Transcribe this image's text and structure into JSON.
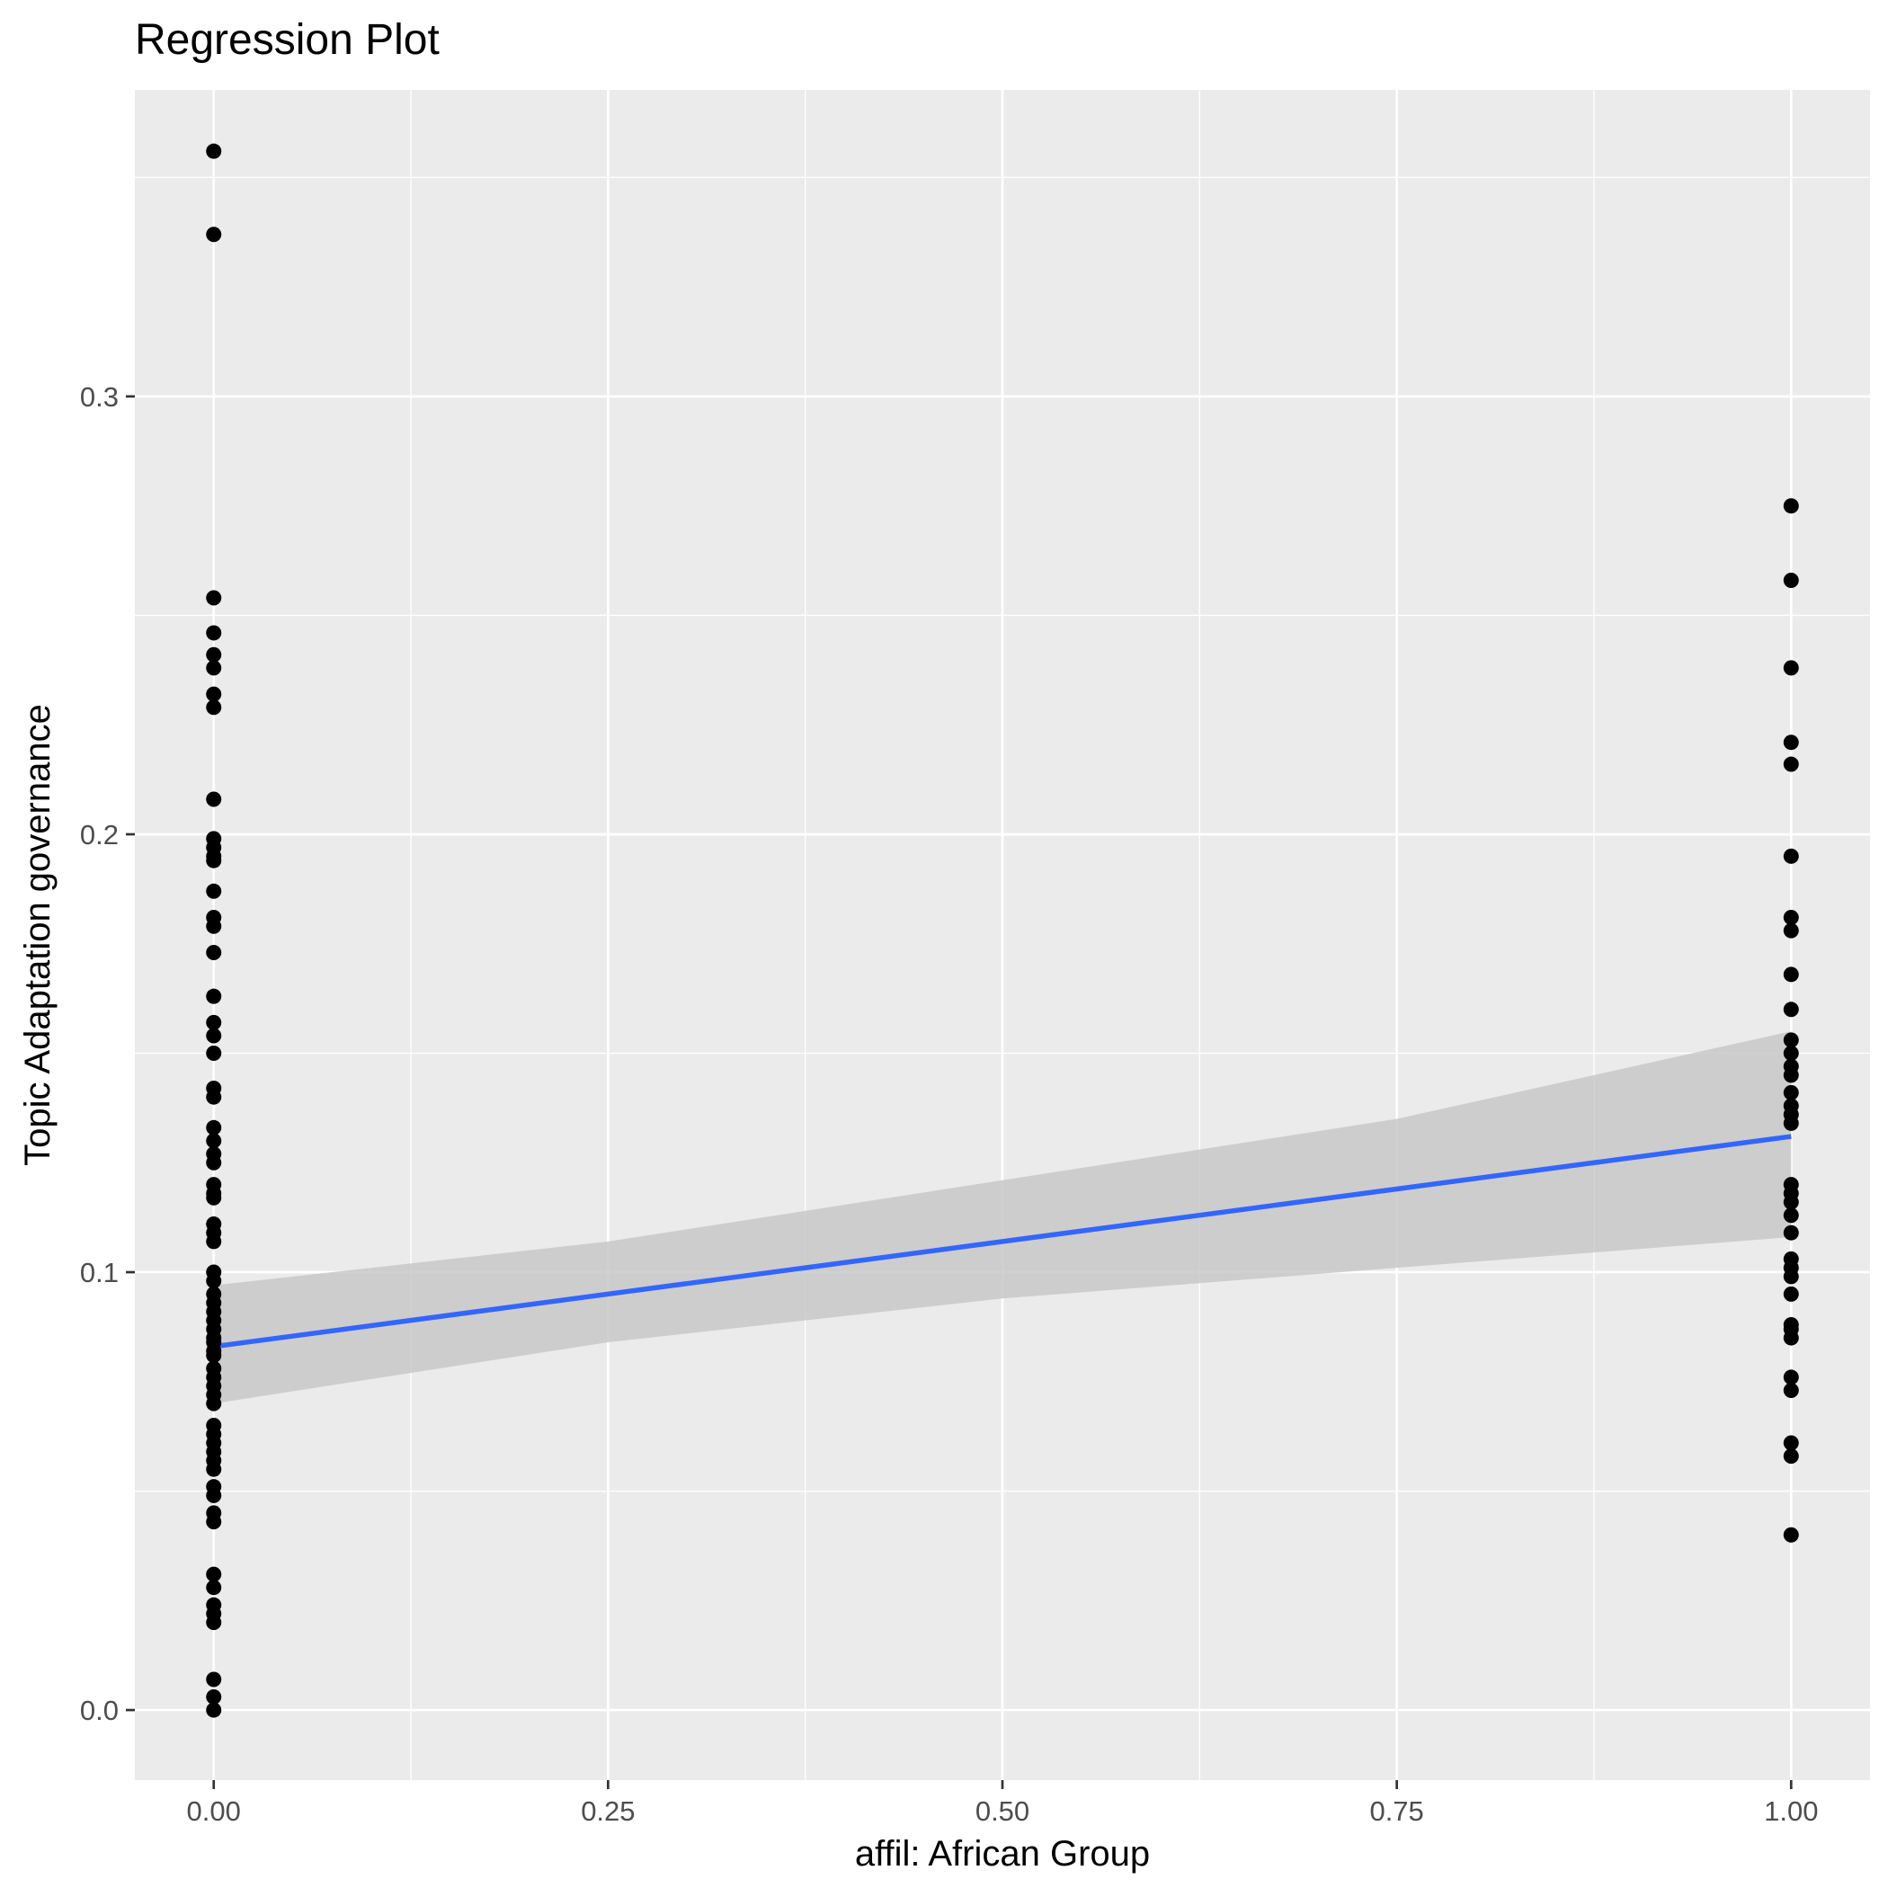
{
  "chart_data": {
    "type": "scatter",
    "title": "Regression Plot",
    "xlabel": "affil: African Group",
    "ylabel": "Topic Adaptation governance",
    "xlim": [
      -0.05,
      1.05
    ],
    "ylim": [
      -0.016,
      0.37
    ],
    "x_ticks": [
      0,
      0.25,
      0.5,
      0.75,
      1
    ],
    "x_tick_labels": [
      "0.00",
      "0.25",
      "0.50",
      "0.75",
      "1.00"
    ],
    "x_minor_ticks": [
      0.125,
      0.375,
      0.625,
      0.875
    ],
    "y_ticks": [
      0,
      0.1,
      0.2,
      0.3
    ],
    "y_tick_labels": [
      "0.0",
      "0.1",
      "0.2",
      "0.3"
    ],
    "y_minor_ticks": [
      0.05,
      0.15,
      0.25,
      0.35
    ],
    "grid": true,
    "legend": "none",
    "colors": {
      "panel_background": "#ebebeb",
      "grid": "#ffffff",
      "points": "#000000",
      "fit_line": "#3366ff",
      "confidence_band": "#c8c8c8",
      "tick_label": "#4d4d4d",
      "tick_mark": "#333333"
    },
    "fit_line": {
      "x": [
        0,
        1
      ],
      "y": [
        0.083,
        0.131
      ]
    },
    "confidence_band": {
      "x": [
        0,
        0.25,
        0.5,
        0.75,
        1
      ],
      "lower": [
        0.07,
        0.084,
        0.094,
        0.101,
        0.108
      ],
      "upper": [
        0.097,
        0.107,
        0.121,
        0.135,
        0.155
      ]
    },
    "series": [
      {
        "x": 0,
        "y": [
          0.356,
          0.337,
          0.254,
          0.246,
          0.241,
          0.238,
          0.232,
          0.229,
          0.208,
          0.199,
          0.197,
          0.195,
          0.194,
          0.187,
          0.181,
          0.179,
          0.173,
          0.163,
          0.157,
          0.154,
          0.15,
          0.142,
          0.14,
          0.133,
          0.13,
          0.127,
          0.125,
          0.12,
          0.118,
          0.117,
          0.111,
          0.109,
          0.107,
          0.1,
          0.098,
          0.095,
          0.093,
          0.091,
          0.089,
          0.087,
          0.085,
          0.084,
          0.082,
          0.081,
          0.078,
          0.076,
          0.074,
          0.072,
          0.07,
          0.065,
          0.063,
          0.061,
          0.059,
          0.057,
          0.055,
          0.051,
          0.049,
          0.045,
          0.043,
          0.031,
          0.028,
          0.024,
          0.022,
          0.02,
          0.007,
          0.003,
          0.0
        ]
      },
      {
        "x": 1,
        "y": [
          0.275,
          0.258,
          0.238,
          0.221,
          0.216,
          0.195,
          0.181,
          0.178,
          0.168,
          0.16,
          0.153,
          0.15,
          0.147,
          0.145,
          0.141,
          0.138,
          0.136,
          0.134,
          0.12,
          0.118,
          0.116,
          0.113,
          0.109,
          0.103,
          0.101,
          0.099,
          0.095,
          0.088,
          0.087,
          0.085,
          0.076,
          0.073,
          0.061,
          0.058,
          0.04
        ]
      }
    ]
  }
}
